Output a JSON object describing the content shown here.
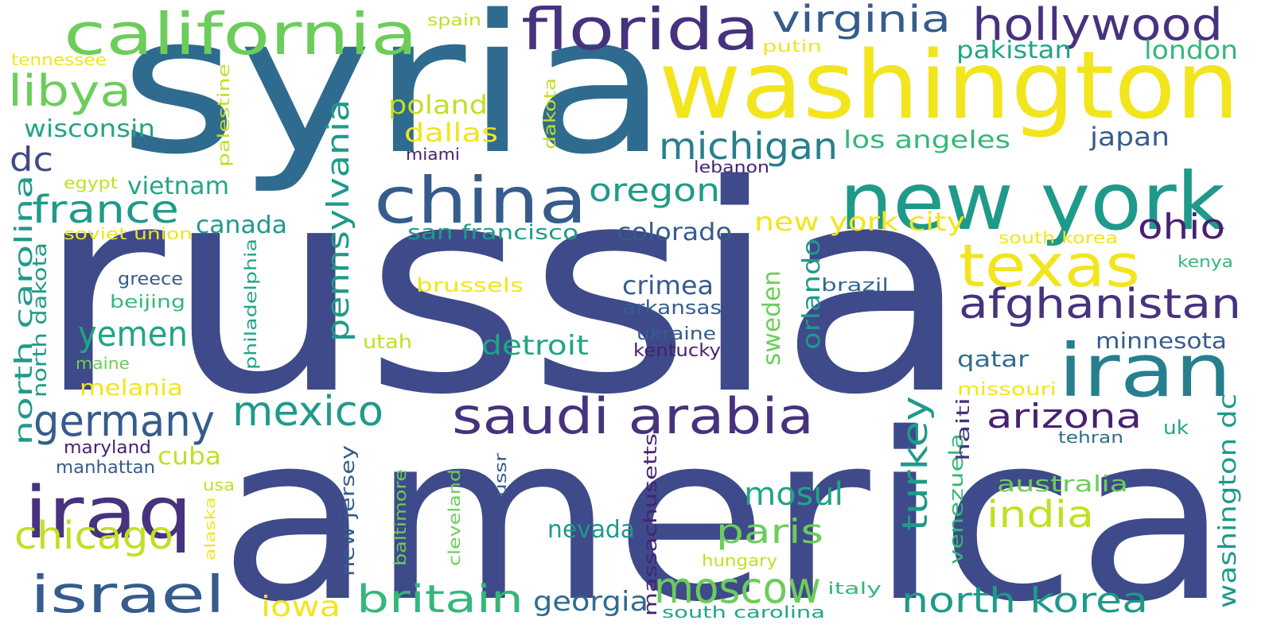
{
  "palette": {
    "background": "#ffffff",
    "navy": "#3e4a89",
    "indigo": "#46327e",
    "blue": "#365c8d",
    "steel": "#2f6b8e",
    "teal_blue": "#277f8e",
    "teal": "#1f9a8a",
    "green_teal": "#21a585",
    "green": "#35b779",
    "light_green": "#6ccd5a",
    "lime": "#a2da37",
    "yellow_green": "#c2df23",
    "yellow": "#f2e51d",
    "purple": "#482173"
  },
  "words": [
    {
      "text": "russia",
      "weight": 1.0
    },
    {
      "text": "america",
      "weight": 0.93
    },
    {
      "text": "syria",
      "weight": 0.74
    },
    {
      "text": "washington",
      "weight": 0.55
    },
    {
      "text": "new york",
      "weight": 0.45
    },
    {
      "text": "iran",
      "weight": 0.38
    },
    {
      "text": "china",
      "weight": 0.3
    },
    {
      "text": "california",
      "weight": 0.3
    },
    {
      "text": "florida",
      "weight": 0.28
    },
    {
      "text": "texas",
      "weight": 0.3
    },
    {
      "text": "iraq",
      "weight": 0.32
    },
    {
      "text": "hollywood",
      "weight": 0.22
    },
    {
      "text": "afghanistan",
      "weight": 0.2
    },
    {
      "text": "saudi arabia",
      "weight": 0.22
    },
    {
      "text": "israel",
      "weight": 0.24
    },
    {
      "text": "germany",
      "weight": 0.2
    },
    {
      "text": "mexico",
      "weight": 0.2
    },
    {
      "text": "moscow",
      "weight": 0.2
    },
    {
      "text": "britain",
      "weight": 0.18
    },
    {
      "text": "north korea",
      "weight": 0.18
    },
    {
      "text": "virginia",
      "weight": 0.16
    },
    {
      "text": "libya",
      "weight": 0.18
    },
    {
      "text": "france",
      "weight": 0.18
    },
    {
      "text": "michigan",
      "weight": 0.17
    },
    {
      "text": "yemen",
      "weight": 0.16
    },
    {
      "text": "chicago",
      "weight": 0.17
    },
    {
      "text": "pennsylvania",
      "weight": 0.16
    },
    {
      "text": "arizona",
      "weight": 0.16
    },
    {
      "text": "turkey",
      "weight": 0.16
    },
    {
      "text": "ohio",
      "weight": 0.16
    },
    {
      "text": "india",
      "weight": 0.16
    },
    {
      "text": "paris",
      "weight": 0.15
    },
    {
      "text": "oregon",
      "weight": 0.14
    },
    {
      "text": "north carolina",
      "weight": 0.14
    },
    {
      "text": "mosul",
      "weight": 0.14
    },
    {
      "text": "dc",
      "weight": 0.14
    },
    {
      "text": "washington dc",
      "weight": 0.12
    },
    {
      "text": "georgia",
      "weight": 0.12
    },
    {
      "text": "iowa",
      "weight": 0.12
    },
    {
      "text": "poland",
      "weight": 0.11
    },
    {
      "text": "dallas",
      "weight": 0.11
    },
    {
      "text": "detroit",
      "weight": 0.11
    },
    {
      "text": "crimea",
      "weight": 0.11
    },
    {
      "text": "new york city",
      "weight": 0.11
    },
    {
      "text": "los angeles",
      "weight": 0.11
    },
    {
      "text": "japan",
      "weight": 0.1
    },
    {
      "text": "pakistan",
      "weight": 0.1
    },
    {
      "text": "london",
      "weight": 0.1
    },
    {
      "text": "wisconsin",
      "weight": 0.1
    },
    {
      "text": "vietnam",
      "weight": 0.1
    },
    {
      "text": "canada",
      "weight": 0.1
    },
    {
      "text": "colorado",
      "weight": 0.1
    },
    {
      "text": "sweden",
      "weight": 0.1
    },
    {
      "text": "orlando",
      "weight": 0.1
    },
    {
      "text": "minnesota",
      "weight": 0.09
    },
    {
      "text": "qatar",
      "weight": 0.09
    },
    {
      "text": "australia",
      "weight": 0.09
    },
    {
      "text": "cuba",
      "weight": 0.09
    },
    {
      "text": "nevada",
      "weight": 0.09
    },
    {
      "text": "melania",
      "weight": 0.09
    },
    {
      "text": "san francisco",
      "weight": 0.09
    },
    {
      "text": "north dakota",
      "weight": 0.09
    },
    {
      "text": "new jersey",
      "weight": 0.08
    },
    {
      "text": "venezuela",
      "weight": 0.08
    },
    {
      "text": "brussels",
      "weight": 0.08
    },
    {
      "text": "arkansas",
      "weight": 0.08
    },
    {
      "text": "philadelphia",
      "weight": 0.07
    },
    {
      "text": "massachusetts",
      "weight": 0.08
    },
    {
      "text": "ukraine",
      "weight": 0.07
    },
    {
      "text": "kentucky",
      "weight": 0.07
    },
    {
      "text": "haiti",
      "weight": 0.07
    },
    {
      "text": "uk",
      "weight": 0.07
    },
    {
      "text": "greece",
      "weight": 0.07
    },
    {
      "text": "beijing",
      "weight": 0.07
    },
    {
      "text": "utah",
      "weight": 0.07
    },
    {
      "text": "maine",
      "weight": 0.06
    },
    {
      "text": "maryland",
      "weight": 0.07
    },
    {
      "text": "manhattan",
      "weight": 0.07
    },
    {
      "text": "missouri",
      "weight": 0.07
    },
    {
      "text": "tehran",
      "weight": 0.06
    },
    {
      "text": "brazil",
      "weight": 0.07
    },
    {
      "text": "kenya",
      "weight": 0.06
    },
    {
      "text": "south korea",
      "weight": 0.06
    },
    {
      "text": "soviet union",
      "weight": 0.06
    },
    {
      "text": "egypt",
      "weight": 0.06
    },
    {
      "text": "palestine",
      "weight": 0.06
    },
    {
      "text": "dakota",
      "weight": 0.06
    },
    {
      "text": "miami",
      "weight": 0.06
    },
    {
      "text": "lebanon",
      "weight": 0.06
    },
    {
      "text": "spain",
      "weight": 0.06
    },
    {
      "text": "putin",
      "weight": 0.06
    },
    {
      "text": "tennessee",
      "weight": 0.06
    },
    {
      "text": "usa",
      "weight": 0.06
    },
    {
      "text": "alaska",
      "weight": 0.05
    },
    {
      "text": "baltimore",
      "weight": 0.06
    },
    {
      "text": "cleveland",
      "weight": 0.06
    },
    {
      "text": "ussr",
      "weight": 0.06
    },
    {
      "text": "hungary",
      "weight": 0.06
    },
    {
      "text": "italy",
      "weight": 0.06
    },
    {
      "text": "south carolina",
      "weight": 0.06
    }
  ]
}
